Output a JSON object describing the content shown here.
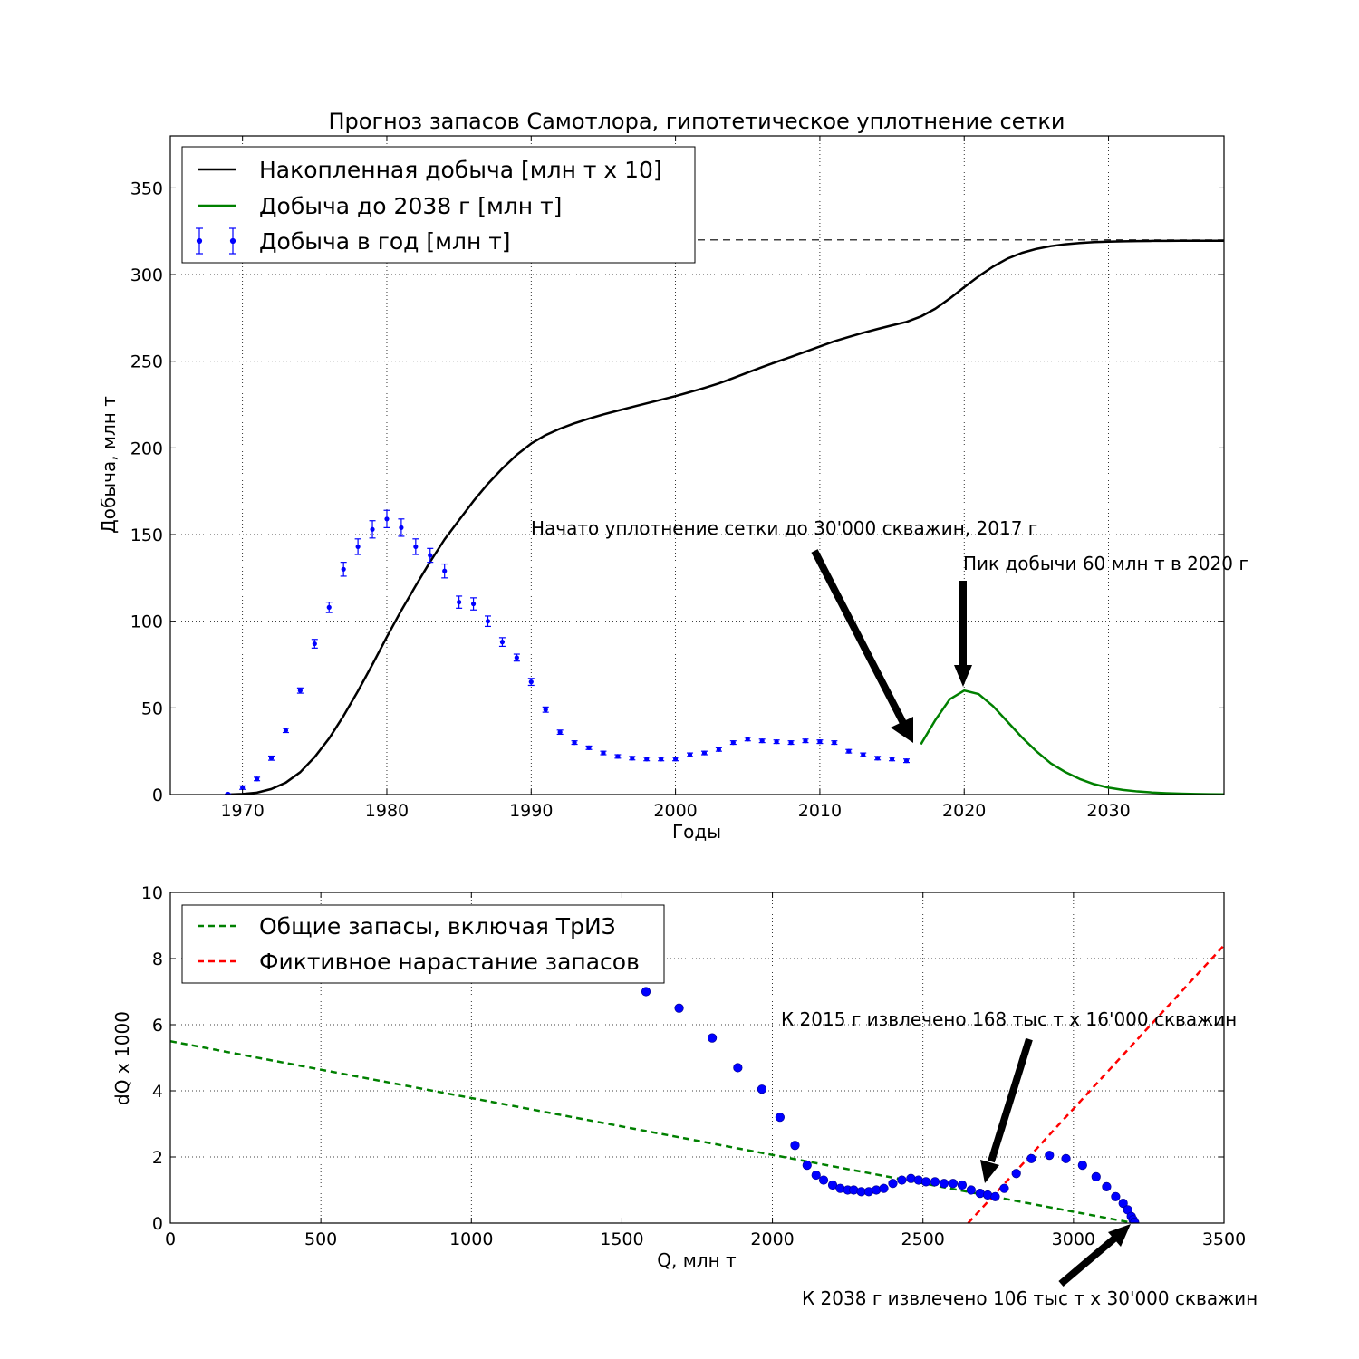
{
  "chart_data": [
    {
      "type": "line",
      "title": "Прогноз запасов Самотлора, гипотетическое уплотнение сетки",
      "xlabel": "Годы",
      "ylabel": "Добыча, млн т",
      "xlim": [
        1965,
        2038
      ],
      "ylim": [
        0,
        380
      ],
      "xticks": [
        1970,
        1980,
        1990,
        2000,
        2010,
        2020,
        2030
      ],
      "yticks": [
        0,
        50,
        100,
        150,
        200,
        250,
        300,
        350
      ],
      "grid": true,
      "legend_position": "top-left",
      "reference_line": {
        "y": 320,
        "style": "dashed",
        "color": "#000000"
      },
      "series": [
        {
          "name": "Накопленная добыча [млн т x 10]",
          "kind": "line",
          "color": "#000000",
          "x": [
            1969,
            1970,
            1971,
            1972,
            1973,
            1974,
            1975,
            1976,
            1977,
            1978,
            1979,
            1980,
            1981,
            1982,
            1983,
            1984,
            1985,
            1986,
            1987,
            1988,
            1989,
            1990,
            1991,
            1992,
            1993,
            1994,
            1995,
            1996,
            1997,
            1998,
            1999,
            2000,
            2001,
            2002,
            2003,
            2004,
            2005,
            2006,
            2007,
            2008,
            2009,
            2010,
            2011,
            2012,
            2013,
            2014,
            2015,
            2016,
            2017,
            2018,
            2019,
            2020,
            2021,
            2022,
            2023,
            2024,
            2025,
            2026,
            2027,
            2028,
            2029,
            2030,
            2031,
            2032,
            2033,
            2034,
            2035,
            2036,
            2037,
            2038
          ],
          "y": [
            0,
            0.3,
            1.1,
            3.2,
            6.9,
            12.9,
            21.6,
            32.4,
            45.4,
            59.7,
            75,
            90.9,
            106.2,
            120.5,
            134.3,
            147.2,
            158.3,
            169.3,
            179.3,
            188.1,
            196,
            202.5,
            207.4,
            211.1,
            214.2,
            216.9,
            219.3,
            221.5,
            223.6,
            225.7,
            227.8,
            229.9,
            232.2,
            234.6,
            237.2,
            240.3,
            243.5,
            246.6,
            249.6,
            252.5,
            255.5,
            258.5,
            261.5,
            264,
            266.4,
            268.6,
            270.7,
            272.7,
            275.8,
            280.3,
            286.2,
            292.7,
            299,
            304.6,
            309.2,
            312.5,
            314.8,
            316.4,
            317.5,
            318.2,
            318.7,
            319,
            319.2,
            319.3,
            319.4,
            319.45,
            319.5,
            319.5,
            319.5,
            319.5
          ]
        },
        {
          "name": "Добыча до 2038 г [млн т]",
          "kind": "line",
          "color": "#008000",
          "x": [
            2017,
            2018,
            2019,
            2020,
            2021,
            2022,
            2023,
            2024,
            2025,
            2026,
            2027,
            2028,
            2029,
            2030,
            2031,
            2032,
            2033,
            2034,
            2035,
            2036,
            2037,
            2038
          ],
          "y": [
            29,
            43,
            55,
            60,
            58,
            51,
            42,
            33,
            25,
            18,
            13,
            9,
            6,
            4,
            2.7,
            1.8,
            1.2,
            0.8,
            0.5,
            0.3,
            0.2,
            0.1
          ]
        },
        {
          "name": "Добыча в год [млн т]",
          "kind": "errorbar",
          "color": "#0000ff",
          "x": [
            1969,
            1970,
            1971,
            1972,
            1973,
            1974,
            1975,
            1976,
            1977,
            1978,
            1979,
            1980,
            1981,
            1982,
            1983,
            1984,
            1985,
            1986,
            1987,
            1988,
            1989,
            1990,
            1991,
            1992,
            1993,
            1994,
            1995,
            1996,
            1997,
            1998,
            1999,
            2000,
            2001,
            2002,
            2003,
            2004,
            2005,
            2006,
            2007,
            2008,
            2009,
            2010,
            2011,
            2012,
            2013,
            2014,
            2015,
            2016
          ],
          "y": [
            0.3,
            4,
            9,
            21,
            37,
            60,
            87,
            108,
            130,
            143,
            153,
            159,
            154,
            143,
            138,
            129,
            111,
            110,
            100,
            88,
            79,
            65,
            49,
            36,
            30,
            27,
            24,
            22,
            21,
            20.5,
            20.5,
            20.5,
            23,
            24,
            26,
            30,
            32,
            31,
            30.5,
            30,
            31,
            30.5,
            30,
            25,
            23,
            21,
            20.5,
            19.5
          ],
          "yerr": [
            0.1,
            1,
            1,
            1.2,
            1.2,
            1.5,
            2.5,
            3,
            4,
            4.5,
            5,
            5,
            5,
            4.5,
            4,
            4,
            3.5,
            3.5,
            3,
            2.5,
            2,
            2,
            1.5,
            1.2,
            1,
            1,
            1,
            1,
            1,
            1,
            1,
            1,
            1,
            1,
            1,
            1,
            1,
            1,
            1,
            1,
            1,
            1,
            1,
            1,
            1,
            1,
            1,
            1
          ]
        }
      ],
      "annotations": [
        {
          "text": "Начато уплотнение сетки до 30'000 скважин, 2017 г",
          "xy": [
            2017,
            29
          ],
          "xytext": [
            1990,
            150
          ]
        },
        {
          "text": "Пик добычи 60 млн т в 2020 г",
          "xy": [
            2020,
            60
          ],
          "xytext": [
            2020,
            130
          ]
        }
      ]
    },
    {
      "type": "scatter",
      "xlabel": "Q, млн т",
      "ylabel": "dQ x 1000",
      "xlim": [
        0,
        3500
      ],
      "ylim": [
        0,
        10
      ],
      "xticks": [
        0,
        500,
        1000,
        1500,
        2000,
        2500,
        3000,
        3500
      ],
      "yticks": [
        0,
        2,
        4,
        6,
        8,
        10
      ],
      "grid": true,
      "legend_position": "top-left",
      "series": [
        {
          "name": "Общие запасы, включая ТрИЗ",
          "kind": "dashed-line",
          "color": "#008000",
          "x": [
            0,
            3200
          ],
          "y": [
            5.5,
            0
          ]
        },
        {
          "name": "Фиктивное нарастание запасов",
          "kind": "dashed-line",
          "color": "#ff0000",
          "x": [
            2650,
            3500
          ],
          "y": [
            0,
            8.4
          ]
        },
        {
          "name": "",
          "kind": "points",
          "color": "#0000ff",
          "x": [
            1580,
            1690,
            1800,
            1885,
            1965,
            2025,
            2075,
            2115,
            2145,
            2170,
            2200,
            2225,
            2250,
            2270,
            2295,
            2320,
            2345,
            2370,
            2400,
            2430,
            2460,
            2485,
            2510,
            2540,
            2570,
            2600,
            2630,
            2660,
            2690,
            2715,
            2740,
            2770,
            2810,
            2860,
            2920,
            2975,
            3030,
            3075,
            3110,
            3140,
            3165,
            3180,
            3192,
            3198,
            3203
          ],
          "y": [
            7,
            6.5,
            5.6,
            4.7,
            4.05,
            3.2,
            2.35,
            1.75,
            1.45,
            1.3,
            1.15,
            1.05,
            1,
            1,
            0.95,
            0.95,
            1,
            1.05,
            1.2,
            1.3,
            1.35,
            1.3,
            1.25,
            1.25,
            1.2,
            1.2,
            1.15,
            1,
            0.9,
            0.85,
            0.8,
            1.05,
            1.5,
            1.95,
            2.05,
            1.95,
            1.75,
            1.4,
            1.1,
            0.8,
            0.6,
            0.4,
            0.2,
            0.1,
            0.02
          ]
        }
      ],
      "annotations": [
        {
          "text": "К 2015 г извлечено 168 тыс т x 16'000 скважин",
          "xy": [
            2700,
            1.2
          ],
          "xytext": [
            2030,
            6.1
          ]
        },
        {
          "text": "К 2038 г извлечено 106 тыс т x 30'000 скважин",
          "xy": [
            3200,
            0
          ],
          "xytext": [
            2100,
            -2.3
          ]
        }
      ]
    }
  ]
}
